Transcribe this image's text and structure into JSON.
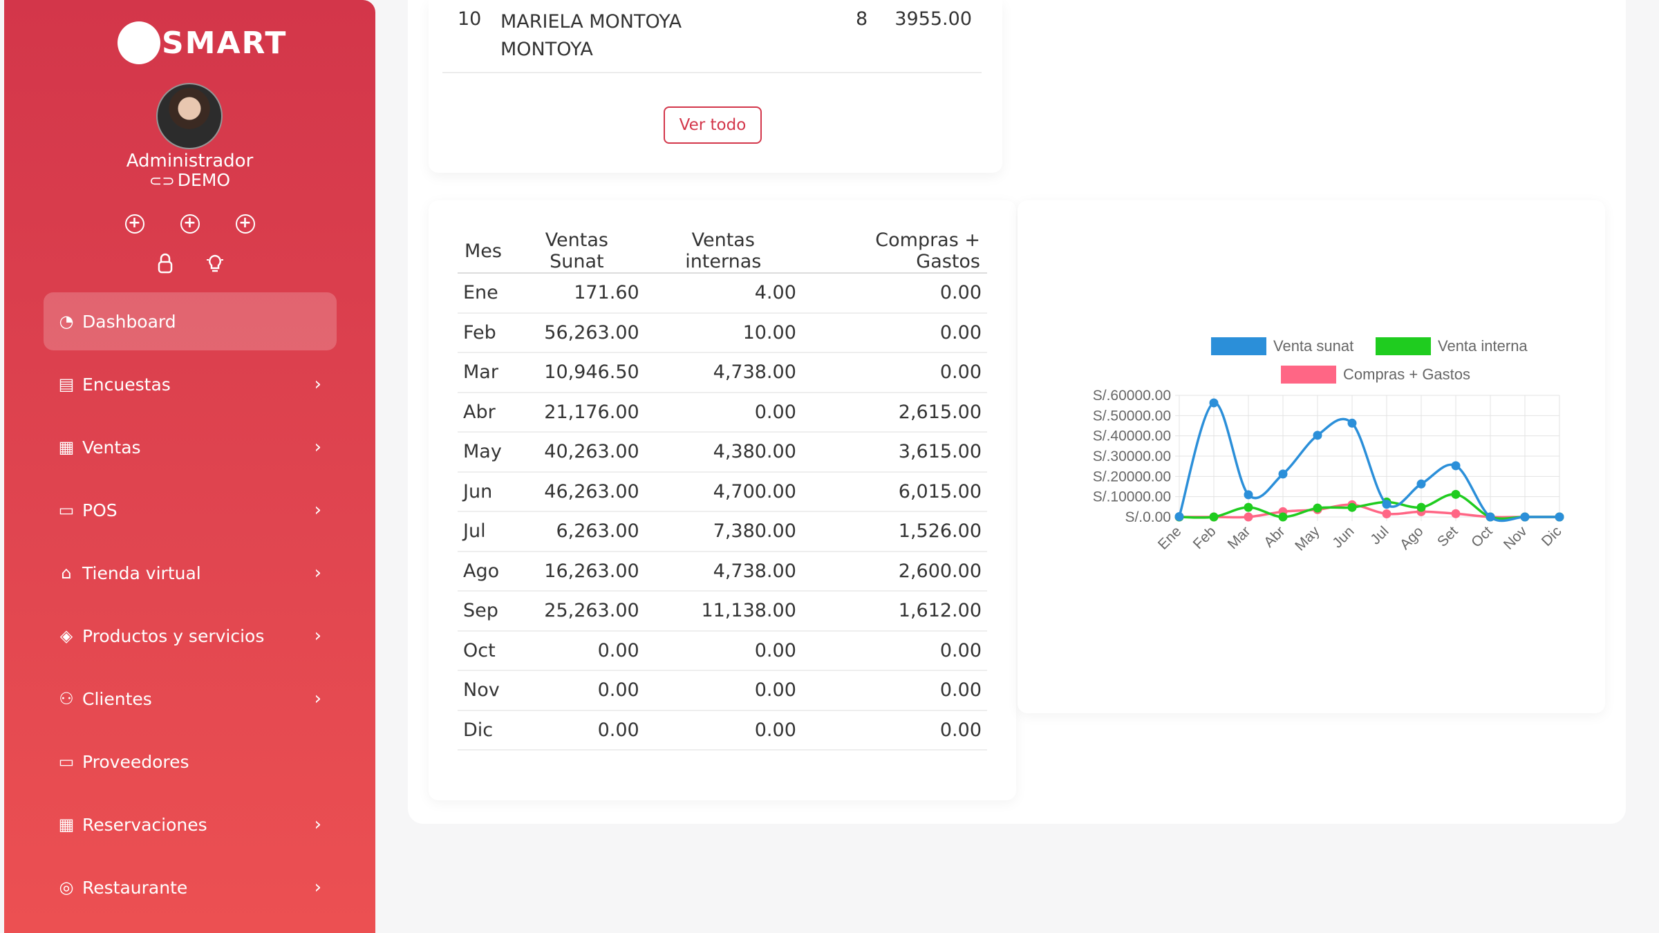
{
  "sidebar": {
    "brand": "SMART",
    "user_role": "Administrador",
    "org_name": "DEMO",
    "quick_icons": [
      "plus-circle-icon",
      "plus-circle-icon",
      "plus-circle-icon",
      "lock-icon",
      "lightbulb-icon"
    ],
    "nav": [
      {
        "label": "Dashboard",
        "icon": "gauge-icon",
        "active": true,
        "has_children": false
      },
      {
        "label": "Encuestas",
        "icon": "survey-icon",
        "has_children": true
      },
      {
        "label": "Ventas",
        "icon": "receipt-icon",
        "has_children": true
      },
      {
        "label": "POS",
        "icon": "monitor-icon",
        "has_children": true
      },
      {
        "label": "Tienda virtual",
        "icon": "store-icon",
        "has_children": true
      },
      {
        "label": "Productos y servicios",
        "icon": "box-icon",
        "has_children": true
      },
      {
        "label": "Clientes",
        "icon": "users-icon",
        "has_children": true
      },
      {
        "label": "Proveedores",
        "icon": "briefcase-icon",
        "has_children": false
      },
      {
        "label": "Reservaciones",
        "icon": "calendar-icon",
        "has_children": true
      },
      {
        "label": "Restaurante",
        "icon": "dish-icon",
        "has_children": true
      }
    ]
  },
  "top_clients": {
    "row": {
      "rank": "10",
      "name": "MARIELA MONTOYA MONTOYA",
      "count": "8",
      "total": "3955.00"
    },
    "view_all_label": "Ver todo"
  },
  "monthly_table": {
    "headers": [
      "Mes",
      "Ventas Sunat",
      "Ventas internas",
      "Compras + Gastos"
    ],
    "rows": [
      [
        "Ene",
        "171.60",
        "4.00",
        "0.00"
      ],
      [
        "Feb",
        "56,263.00",
        "10.00",
        "0.00"
      ],
      [
        "Mar",
        "10,946.50",
        "4,738.00",
        "0.00"
      ],
      [
        "Abr",
        "21,176.00",
        "0.00",
        "2,615.00"
      ],
      [
        "May",
        "40,263.00",
        "4,380.00",
        "3,615.00"
      ],
      [
        "Jun",
        "46,263.00",
        "4,700.00",
        "6,015.00"
      ],
      [
        "Jul",
        "6,263.00",
        "7,380.00",
        "1,526.00"
      ],
      [
        "Ago",
        "16,263.00",
        "4,738.00",
        "2,600.00"
      ],
      [
        "Sep",
        "25,263.00",
        "11,138.00",
        "1,612.00"
      ],
      [
        "Oct",
        "0.00",
        "0.00",
        "0.00"
      ],
      [
        "Nov",
        "0.00",
        "0.00",
        "0.00"
      ],
      [
        "Dic",
        "0.00",
        "0.00",
        "0.00"
      ]
    ]
  },
  "chart_data": {
    "type": "line",
    "categories": [
      "Ene",
      "Feb",
      "Mar",
      "Abr",
      "May",
      "Jun",
      "Jul",
      "Ago",
      "Set",
      "Oct",
      "Nov",
      "Dic"
    ],
    "series": [
      {
        "name": "Venta sunat",
        "color": "#2b8fd9",
        "values": [
          171.6,
          56263,
          10946.5,
          21176,
          40263,
          46263,
          6263,
          16263,
          25263,
          0,
          0,
          0
        ]
      },
      {
        "name": "Venta interna",
        "color": "#1fcc1f",
        "values": [
          4,
          10,
          4738,
          0,
          4380,
          4700,
          7380,
          4738,
          11138,
          0,
          0,
          0
        ]
      },
      {
        "name": "Compras + Gastos",
        "color": "#ff6685",
        "values": [
          0,
          0,
          0,
          2615,
          3615,
          6015,
          1526,
          2600,
          1612,
          0,
          0,
          0
        ]
      }
    ],
    "y_ticks": [
      "S/.0.00",
      "S/.10000.00",
      "S/.20000.00",
      "S/.30000.00",
      "S/.40000.00",
      "S/.50000.00",
      "S/.60000.00"
    ],
    "ylim": [
      0,
      60000
    ],
    "grid": true,
    "legend_position": "top",
    "smooth": true
  }
}
